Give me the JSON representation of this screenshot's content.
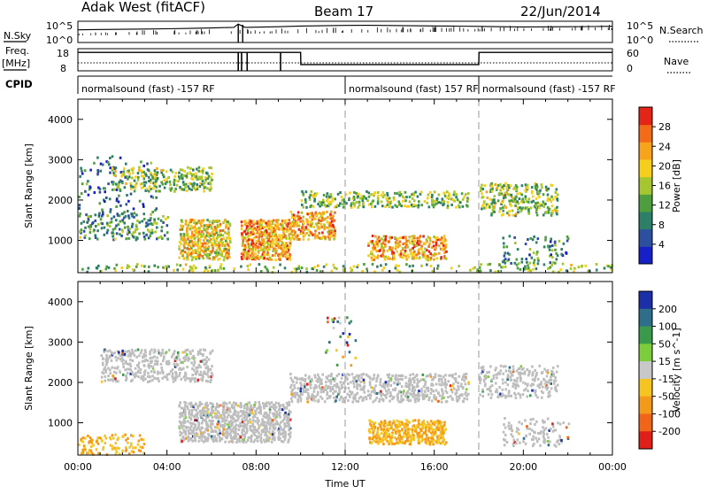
{
  "header": {
    "title": "Adak West (fitACF)",
    "beam": "Beam 17",
    "date": "22/Jun/2014"
  },
  "chart_data": [
    {
      "type": "line",
      "name": "sky-noise-panel",
      "left_label": "N.Sky",
      "right_label": "N.Search",
      "left_ticks": [
        "10^5",
        "10^0"
      ],
      "right_ticks": [
        "10^5",
        "10^0"
      ],
      "scale": "log",
      "ylim": [
        1,
        100000
      ],
      "x": [
        0,
        1,
        2,
        3,
        4,
        5,
        6,
        6.5,
        7,
        7.2,
        7.5,
        8,
        9,
        10,
        11,
        12,
        13,
        14,
        15,
        16,
        17,
        18,
        19,
        20,
        21,
        22,
        23,
        24
      ],
      "values": [
        1200,
        1500,
        1700,
        2000,
        2400,
        3000,
        4000,
        5000,
        6000,
        50000,
        6000,
        6500,
        9000,
        14000,
        17000,
        21000,
        22000,
        20000,
        17000,
        15000,
        13000,
        11000,
        9000,
        8000,
        8500,
        9000,
        10000,
        12000
      ]
    },
    {
      "type": "line",
      "name": "frequency-nave-panel",
      "left_label": "Freq. [MHz]",
      "right_label": "Nave",
      "left_ticks": [
        "18",
        "8"
      ],
      "right_ticks": [
        "60",
        "0"
      ],
      "freq_ylim": [
        8,
        18
      ],
      "nave_ylim": [
        0,
        60
      ],
      "frequency": {
        "x": [
          0,
          24
        ],
        "values": [
          11.6,
          11.6
        ]
      },
      "nave": {
        "x": [
          0,
          6,
          10,
          10.01,
          18,
          18.01,
          24
        ],
        "values": [
          50,
          50,
          50,
          17,
          17,
          50,
          50
        ]
      }
    },
    {
      "type": "table",
      "name": "cpid-strip",
      "label": "CPID",
      "segments": [
        {
          "start": 0,
          "end": 12,
          "text": "normalsound (fast) -157 RF"
        },
        {
          "start": 12,
          "end": 18,
          "text": "normalsound (fast) 157 RF"
        },
        {
          "start": 18,
          "end": 24,
          "text": "normalsound (fast) -157 RF"
        }
      ]
    },
    {
      "type": "heatmap",
      "name": "power-panel",
      "ylabel": "Slant Range [km]",
      "xlim": [
        0,
        24
      ],
      "ylim": [
        200,
        4500
      ],
      "y_ticks": [
        1000,
        2000,
        3000,
        4000
      ],
      "colorbar": {
        "label": "Power [dB]",
        "ticks": [
          4,
          8,
          12,
          16,
          20,
          24,
          28
        ],
        "range": [
          0,
          32
        ],
        "colors": [
          "#1520c8",
          "#2c4fa0",
          "#2e7f68",
          "#4f9e3e",
          "#a5c62e",
          "#f6cf1d",
          "#f7a41c",
          "#f36a17",
          "#e32416"
        ]
      },
      "regions": [
        {
          "x0": 0.0,
          "x1": 3.5,
          "y0": 1600,
          "y1": 3100,
          "level": 0.25,
          "density": 0.1
        },
        {
          "x0": 0.0,
          "x1": 4.0,
          "y0": 1000,
          "y1": 1700,
          "level": 0.35,
          "density": 0.35
        },
        {
          "x0": 1.5,
          "x1": 6.0,
          "y0": 2200,
          "y1": 2800,
          "level": 0.45,
          "density": 0.45
        },
        {
          "x0": 4.5,
          "x1": 6.8,
          "y0": 500,
          "y1": 1500,
          "level": 0.62,
          "density": 0.85
        },
        {
          "x0": 7.3,
          "x1": 9.5,
          "y0": 500,
          "y1": 1500,
          "level": 0.72,
          "density": 0.85
        },
        {
          "x0": 9.5,
          "x1": 11.5,
          "y0": 1000,
          "y1": 1700,
          "level": 0.7,
          "density": 0.7
        },
        {
          "x0": 10.0,
          "x1": 17.5,
          "y0": 1800,
          "y1": 2200,
          "level": 0.45,
          "density": 0.45
        },
        {
          "x0": 13.0,
          "x1": 16.5,
          "y0": 500,
          "y1": 1100,
          "level": 0.72,
          "density": 0.6
        },
        {
          "x0": 18.0,
          "x1": 21.5,
          "y0": 1600,
          "y1": 2400,
          "level": 0.48,
          "density": 0.45
        },
        {
          "x0": 19.0,
          "x1": 22.0,
          "y0": 400,
          "y1": 1100,
          "level": 0.3,
          "density": 0.2
        },
        {
          "x0": 0.0,
          "x1": 24.0,
          "y0": 200,
          "y1": 400,
          "level": 0.45,
          "density": 0.25
        }
      ]
    },
    {
      "type": "heatmap",
      "name": "velocity-panel",
      "ylabel": "Slant Range [km]",
      "xlabel": "Time UT",
      "xlim": [
        0,
        24
      ],
      "ylim": [
        200,
        4500
      ],
      "x_tick_labels": [
        "00:00",
        "04:00",
        "08:00",
        "12:00",
        "16:00",
        "20:00",
        "00:00"
      ],
      "y_ticks": [
        1000,
        2000,
        3000,
        4000
      ],
      "colorbar": {
        "label": "Velocity [m s^-1]",
        "ticks": [
          200,
          100,
          50,
          15,
          -15,
          -50,
          -100,
          -200
        ],
        "colors": [
          "#1a2fa8",
          "#2f6e8a",
          "#3a9a4c",
          "#7ccd3c",
          "#c8c8c8",
          "#f6c420",
          "#f39a1a",
          "#f26418",
          "#e02018"
        ]
      },
      "ground_scatter_color": "#bdbdbd",
      "regions": [
        {
          "x0": 1.0,
          "x1": 6.0,
          "y0": 2000,
          "y1": 2800,
          "kind": "ground",
          "density": 0.45
        },
        {
          "x0": 4.5,
          "x1": 9.5,
          "y0": 500,
          "y1": 1500,
          "kind": "ground",
          "density": 0.8
        },
        {
          "x0": 9.5,
          "x1": 17.5,
          "y0": 1500,
          "y1": 2200,
          "kind": "ground",
          "density": 0.55
        },
        {
          "x0": 13.0,
          "x1": 16.5,
          "y0": 450,
          "y1": 1050,
          "kind": "negative",
          "density": 0.8
        },
        {
          "x0": 18.0,
          "x1": 21.5,
          "y0": 1600,
          "y1": 2400,
          "kind": "ground",
          "density": 0.45
        },
        {
          "x0": 19.0,
          "x1": 22.0,
          "y0": 400,
          "y1": 1100,
          "kind": "ground",
          "density": 0.25
        },
        {
          "x0": 0.0,
          "x1": 3.0,
          "y0": 200,
          "y1": 700,
          "kind": "negative",
          "density": 0.3
        },
        {
          "x0": 11.0,
          "x1": 12.5,
          "y0": 2400,
          "y1": 3600,
          "kind": "mixed",
          "density": 0.1
        }
      ]
    }
  ]
}
